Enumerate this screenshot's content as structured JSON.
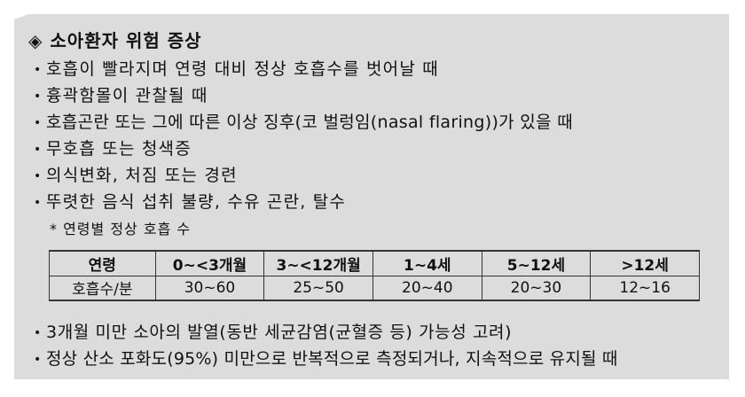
{
  "title": "소아환자 위험 증상",
  "title_icon": "diamond-icon",
  "bullets_top": [
    "호흡이 빨라지며 연령 대비 정상 호흡수를 벗어날 때",
    "흉곽함몰이 관찰될 때",
    "호흡곤란 또는 그에 따른 이상 징후(코 벌렁임(nasal flaring))가 있을 때",
    "무호흡 또는 청색증",
    "의식변화, 처짐 또는 경련",
    "뚜렷한 음식 섭취 불량, 수유 곤란, 탈수"
  ],
  "note": "* 연령별 정상 호흡 수",
  "table": {
    "headers": [
      "연령",
      "0~<3개월",
      "3~<12개월",
      "1~4세",
      "5~12세",
      ">12세"
    ],
    "row": [
      "호흡수/분",
      "30~60",
      "25~50",
      "20~40",
      "20~30",
      "12~16"
    ]
  },
  "bullets_bottom": [
    "3개월 미만 소아의 발열(동반 세균감염(균혈증 등) 가능성 고려)",
    "정상 산소 포화도(95%) 미만으로 반복적으로 측정되거나, 지속적으로 유지될 때"
  ]
}
